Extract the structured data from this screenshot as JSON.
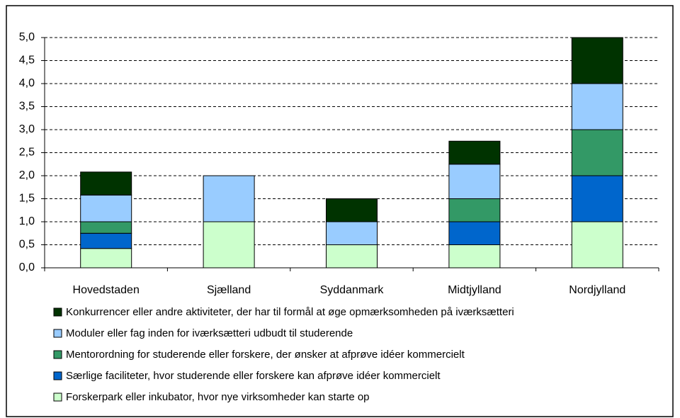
{
  "chart_data": {
    "type": "stacked_bar",
    "categories": [
      "Hovedstaden",
      "Sjælland",
      "Syddanmark",
      "Midtjylland",
      "Nordjylland"
    ],
    "series": [
      {
        "name": "Forskerpark eller inkubator, hvor nye virksomheder kan starte op",
        "color": "#ccffcc",
        "values": [
          0.42,
          1,
          0.5,
          0.5,
          1
        ]
      },
      {
        "name": "Særlige faciliteter, hvor studerende eller forskere kan afprøve idéer kommercielt",
        "color": "#0066cc",
        "values": [
          0.33,
          0,
          0,
          0.5,
          1
        ]
      },
      {
        "name": "Mentorordning for studerende eller forskere, der ønsker at afprøve idéer kommercielt",
        "color": "#339966",
        "values": [
          0.25,
          0,
          0,
          0.5,
          1
        ]
      },
      {
        "name": "Moduler eller fag inden for iværksætteri udbudt til studerende",
        "color": "#99ccff",
        "values": [
          0.58,
          1,
          0.5,
          0.75,
          1
        ]
      },
      {
        "name": "Konkurrencer eller andre aktiviteter, der har til formål at øge opmærksomheden på iværksætteri",
        "color": "#003300",
        "values": [
          0.5,
          0,
          0.5,
          0.5,
          1
        ]
      }
    ],
    "ylim": [
      0,
      5
    ],
    "yticks": [
      {
        "value": 0,
        "label": "0,0"
      },
      {
        "value": 0.5,
        "label": "0,5"
      },
      {
        "value": 1,
        "label": "1,0"
      },
      {
        "value": 1.5,
        "label": "1,5"
      },
      {
        "value": 2,
        "label": "2,0"
      },
      {
        "value": 2.5,
        "label": "2,5"
      },
      {
        "value": 3,
        "label": "3,0"
      },
      {
        "value": 3.5,
        "label": "3,5"
      },
      {
        "value": 4,
        "label": "4,0"
      },
      {
        "value": 4.5,
        "label": "4,5"
      },
      {
        "value": 5,
        "label": "5,0"
      }
    ],
    "grid": true
  }
}
